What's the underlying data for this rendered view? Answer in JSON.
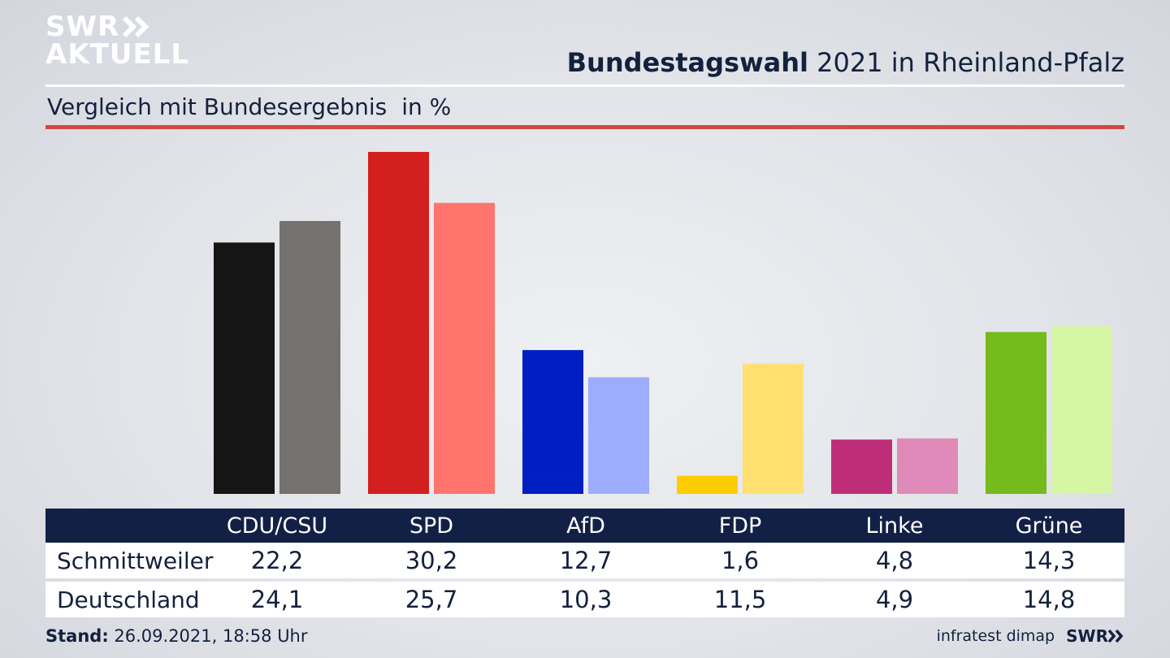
{
  "brand": {
    "line1": "SWR",
    "line2": "AKTUELL",
    "footer_logo": "SWR",
    "chevron_icon": "double-chevron-right-icon"
  },
  "header": {
    "title_bold": "Bundestagswahl",
    "title_rest": "2021 in Rheinland-Pfalz",
    "subtitle": "Vergleich mit Bundesergebnis",
    "unit": "in %"
  },
  "footer": {
    "stand_label": "Stand:",
    "stand_value": "26.09.2021, 18:58 Uhr",
    "source": "infratest dimap"
  },
  "colors": {
    "accent_red": "#d6473b",
    "table_header": "#132046",
    "text": "#14213d"
  },
  "chart_data": {
    "type": "bar",
    "categories": [
      "CDU/CSU",
      "SPD",
      "AfD",
      "FDP",
      "Linke",
      "Grüne"
    ],
    "series": [
      {
        "name": "Schmittweiler",
        "values": [
          22.2,
          30.2,
          12.7,
          1.6,
          4.8,
          14.3
        ],
        "display": [
          "22,2",
          "30,2",
          "12,7",
          "1,6",
          "4,8",
          "14,3"
        ],
        "colors": [
          "#151515",
          "#d41f1f",
          "#001fc3",
          "#ffcc00",
          "#be2e78",
          "#75bb1c"
        ]
      },
      {
        "name": "Deutschland",
        "values": [
          24.1,
          25.7,
          10.3,
          11.5,
          4.9,
          14.8
        ],
        "display": [
          "24,1",
          "25,7",
          "10,3",
          "11,5",
          "4,9",
          "14,8"
        ],
        "colors": [
          "#74716f",
          "#ff756d",
          "#9eacff",
          "#ffe071",
          "#e08ab9",
          "#d6f6a6"
        ]
      }
    ],
    "ylim": [
      0,
      30.2
    ],
    "grid": false,
    "legend": "table-below"
  }
}
